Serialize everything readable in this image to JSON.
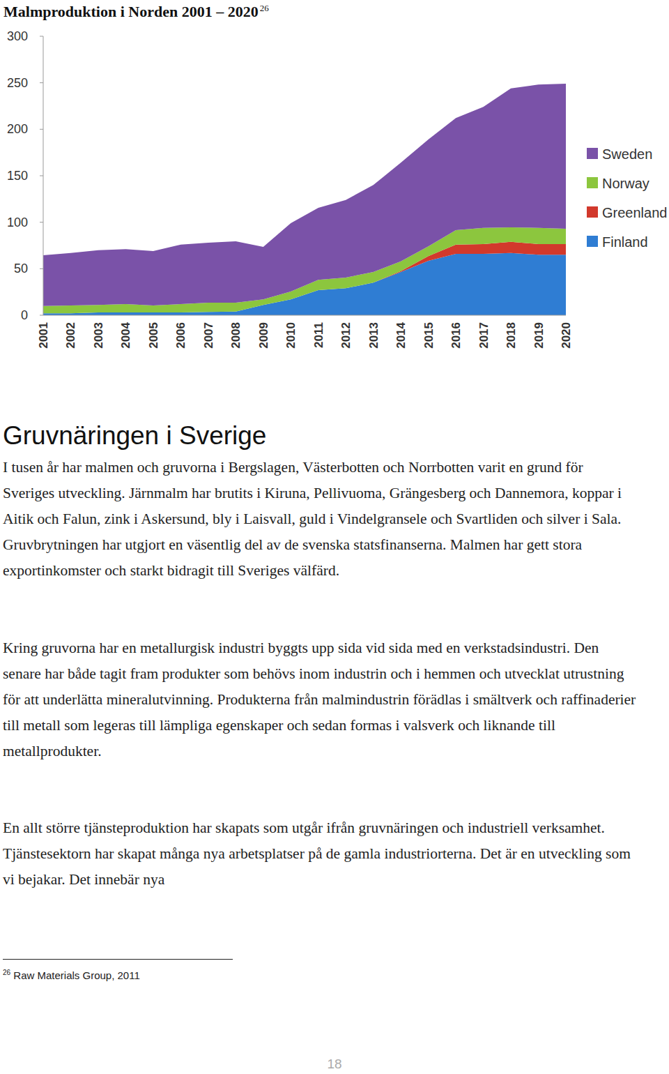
{
  "chart_data": {
    "type": "area",
    "title": "Malmproduktion i Norden 2001 – 2020",
    "annotations": [
      "26"
    ],
    "stacked": true,
    "grid": false,
    "legend": "right",
    "categories": [
      "2001",
      "2002",
      "2003",
      "2004",
      "2005",
      "2006",
      "2007",
      "2008",
      "2009",
      "2010",
      "2011",
      "2012",
      "2013",
      "2014",
      "2015",
      "2016",
      "2017",
      "2018",
      "2019",
      "2020"
    ],
    "ylim": [
      0,
      300
    ],
    "yticks": [
      0,
      50,
      100,
      150,
      200,
      250,
      300
    ],
    "series": [
      {
        "name": "Finland",
        "color": "#2f7dd3",
        "values": [
          2,
          2,
          3,
          3,
          3,
          3,
          3.5,
          4,
          11,
          17,
          27,
          29,
          35,
          46.5,
          58.5,
          66,
          66,
          67,
          65,
          65
        ]
      },
      {
        "name": "Greenland",
        "color": "#d2392c",
        "values": [
          0,
          0,
          0,
          0,
          0,
          0,
          0,
          0,
          0,
          0,
          0,
          0,
          0,
          1,
          5,
          10,
          10.5,
          12,
          11.5,
          11.5
        ]
      },
      {
        "name": "Norway",
        "color": "#8cc63e",
        "values": [
          8,
          8.5,
          8,
          9,
          7.5,
          9,
          10,
          9.5,
          6,
          8.5,
          11,
          11.5,
          11.5,
          10.5,
          10.5,
          15.5,
          17.5,
          15.5,
          17.5,
          16.5
        ]
      },
      {
        "name": "Sweden",
        "color": "#7a52a8",
        "values": [
          54.5,
          56.5,
          59,
          59,
          58.5,
          64,
          64.5,
          66,
          56.5,
          73.5,
          77.5,
          83.5,
          93.5,
          106,
          115,
          120.5,
          130,
          149.5,
          154,
          156
        ]
      }
    ]
  },
  "document": {
    "heading": "Gruvnäringen i Sverige",
    "paragraphs": [
      "I tusen år har malmen och gruvorna i Bergslagen, Västerbotten och Norrbotten varit en grund för Sveriges utveckling. Järnmalm har brutits i Kiruna, Pellivuoma, Grängesberg och Dannemora, koppar i Aitik och Falun, zink i Askersund, bly i Laisvall, guld i Vindelgransele och Svartliden och silver i Sala. Gruvbrytningen har utgjort en väsentlig del av de svenska statsfinanserna. Malmen har gett stora exportinkomster och starkt bidragit till Sveriges välfärd.",
      "Kring gruvorna har en metallurgisk industri byggts upp sida vid sida med en verkstadsindustri. Den senare har både tagit fram produkter som behövs inom industrin och i hemmen och utvecklat utrustning för att underlätta mineralutvinning. Produkterna från malmindustrin förädlas i smältverk och raffinaderier till metall som legeras till lämpliga egenskaper och sedan formas i valsverk och liknande till metallprodukter.",
      "En allt större tjänsteproduktion har skapats som utgår ifrån gruvnäringen och industriell verksamhet. Tjänstesektorn har skapat många nya arbetsplatser på de gamla industriorterna. Det är en utveckling som vi bejakar. Det innebär nya"
    ],
    "footnote": {
      "ref": "26",
      "text": "Raw Materials Group, 2011"
    },
    "page_number": "18"
  }
}
